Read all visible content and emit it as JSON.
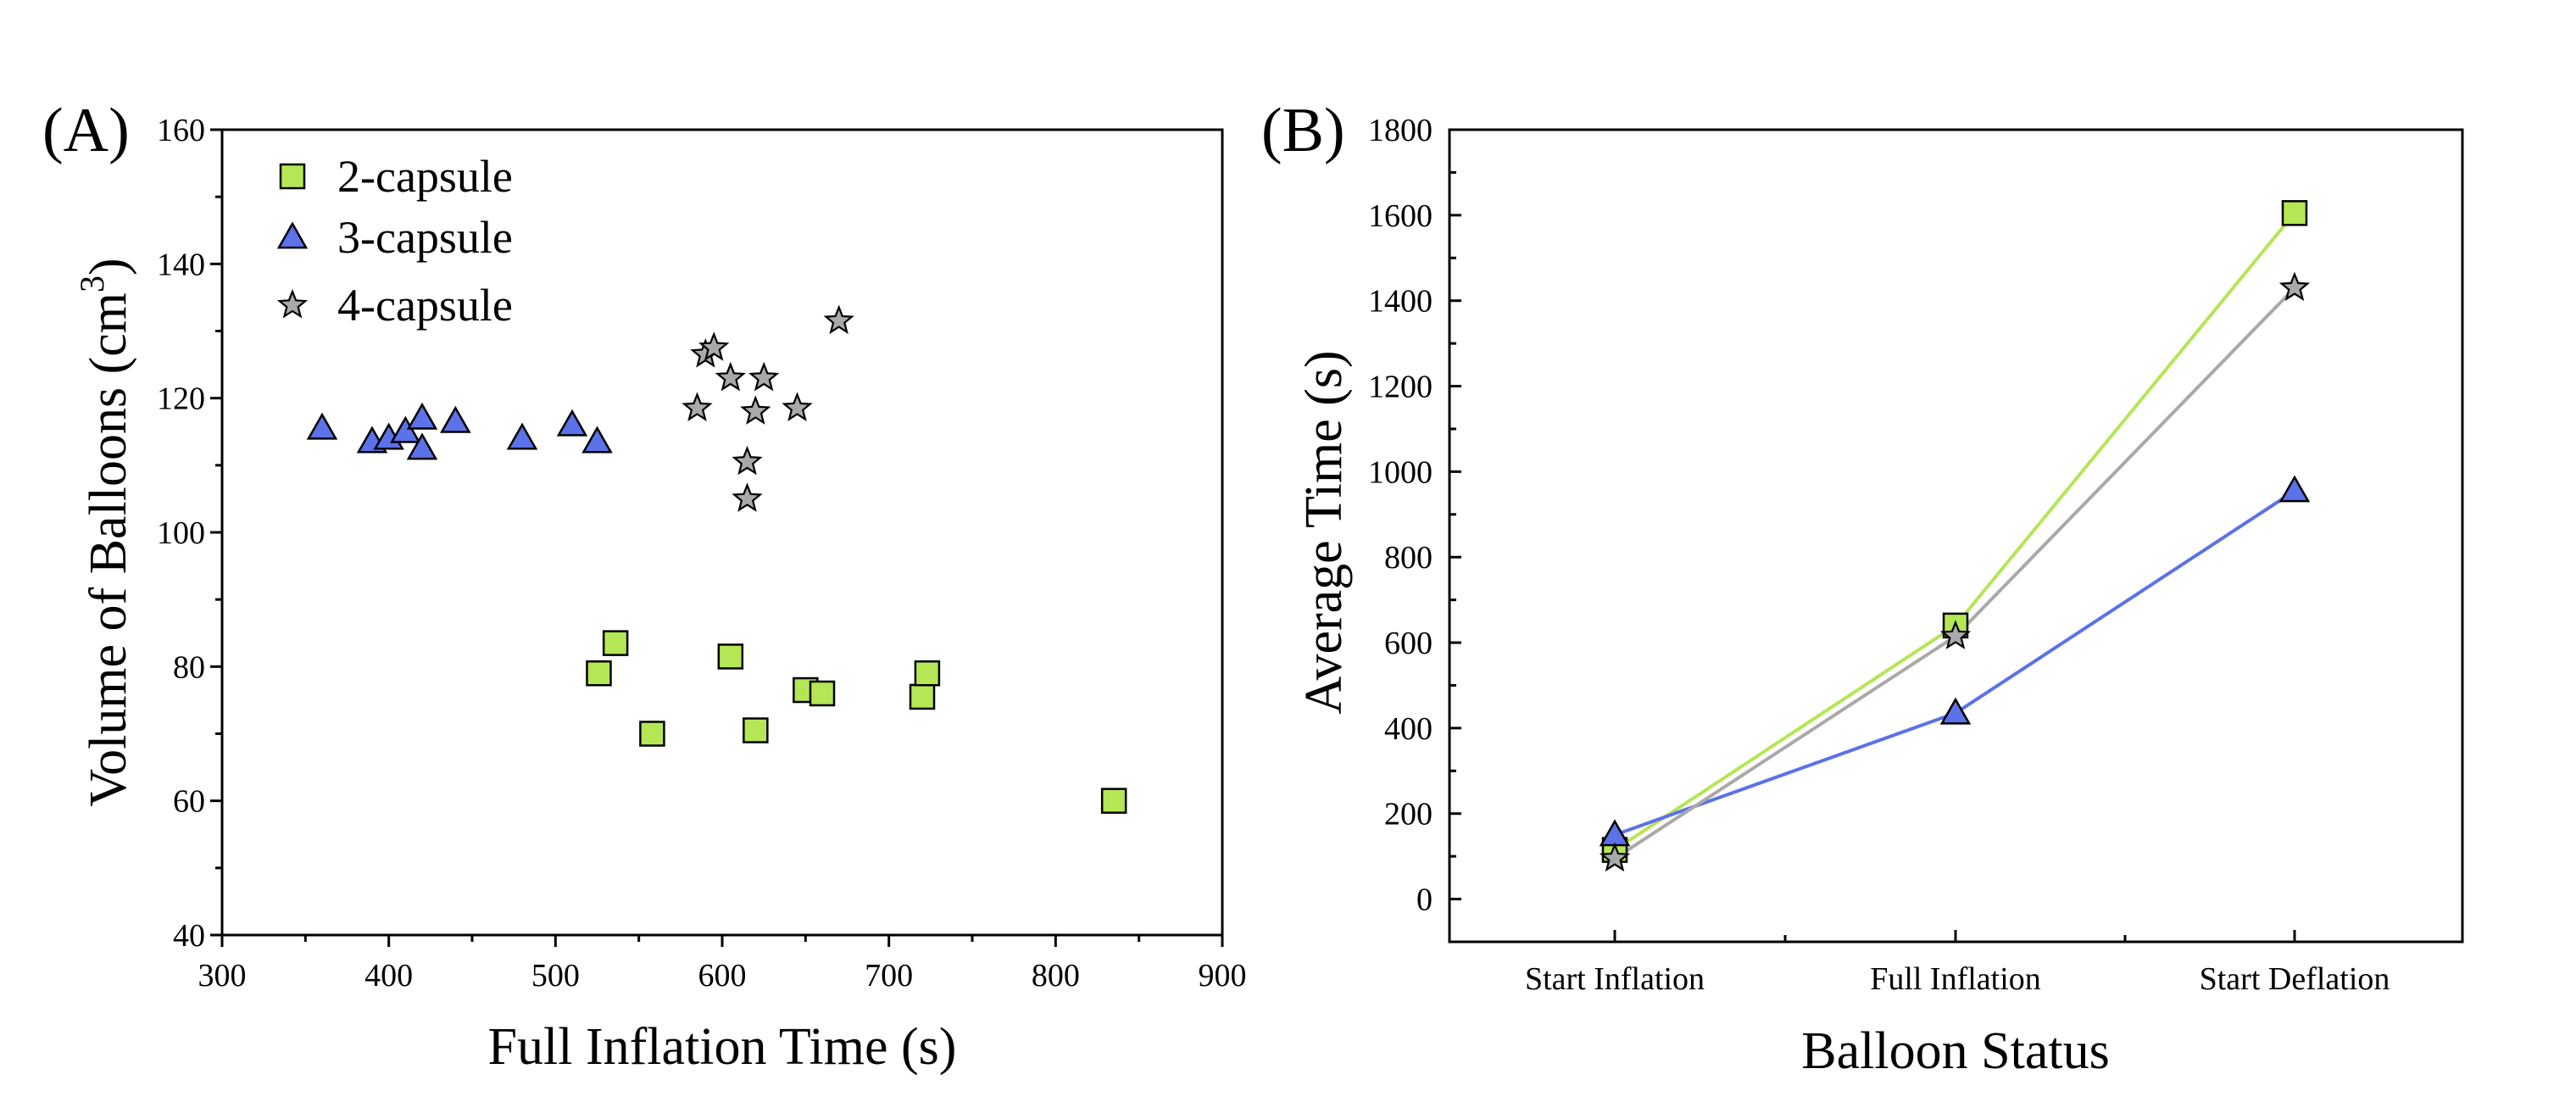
{
  "chart_data": [
    {
      "type": "scatter",
      "panel_label": "(A)",
      "title": "",
      "xlabel": "Full Inflation Time (s)",
      "ylabel_main": "Volume of Balloons (cm",
      "ylabel_sup": "3",
      "ylabel_close": ")",
      "xlim": [
        300,
        900
      ],
      "ylim": [
        40,
        160
      ],
      "xticks": [
        300,
        400,
        500,
        600,
        700,
        800,
        900
      ],
      "yticks": [
        40,
        60,
        80,
        100,
        120,
        140,
        160
      ],
      "grid": false,
      "legend_position": "top-left",
      "series": [
        {
          "name": "2-capsule",
          "marker": "square",
          "color": "#b5e655",
          "points": [
            [
              526,
              79
            ],
            [
              536,
              83.5
            ],
            [
              558,
              70
            ],
            [
              605,
              81.5
            ],
            [
              620,
              70.5
            ],
            [
              650,
              76.5
            ],
            [
              660,
              76
            ],
            [
              720,
              75.5
            ],
            [
              723,
              79
            ],
            [
              835,
              60
            ]
          ]
        },
        {
          "name": "3-capsule",
          "marker": "triangle",
          "color": "#5b72e8",
          "points": [
            [
              360,
              115.5
            ],
            [
              390,
              113.5
            ],
            [
              400,
              114
            ],
            [
              410,
              115
            ],
            [
              420,
              112.5
            ],
            [
              420,
              117
            ],
            [
              440,
              116.5
            ],
            [
              480,
              114
            ],
            [
              510,
              116
            ],
            [
              525,
              113.5
            ]
          ]
        },
        {
          "name": "4-capsule",
          "marker": "star",
          "color": "#a9a9a9",
          "points": [
            [
              585,
              118.5
            ],
            [
              590,
              126.5
            ],
            [
              595,
              127.5
            ],
            [
              605,
              123
            ],
            [
              615,
              110.5
            ],
            [
              615,
              105
            ],
            [
              620,
              118
            ],
            [
              625,
              123
            ],
            [
              645,
              118.5
            ],
            [
              670,
              131.5
            ]
          ]
        }
      ]
    },
    {
      "type": "line",
      "panel_label": "(B)",
      "title": "",
      "xlabel": "Balloon Status",
      "ylabel": "Average Time (s)",
      "categories": [
        "Start Inflation",
        "Full Inflation",
        "Start Deflation"
      ],
      "ylim": [
        -100,
        1800
      ],
      "yticks": [
        0,
        200,
        400,
        600,
        800,
        1000,
        1200,
        1400,
        1600,
        1800
      ],
      "grid": false,
      "series": [
        {
          "name": "2-capsule",
          "marker": "square",
          "color": "#b5e655",
          "line_color": "#b5e655",
          "values": [
            115,
            640,
            1605
          ]
        },
        {
          "name": "3-capsule",
          "marker": "triangle",
          "color": "#5b72e8",
          "line_color": "#5b72e8",
          "values": [
            150,
            435,
            955
          ]
        },
        {
          "name": "4-capsule",
          "marker": "star",
          "color": "#a9a9a9",
          "line_color": "#a9a9a9",
          "values": [
            95,
            615,
            1430
          ]
        }
      ]
    }
  ]
}
